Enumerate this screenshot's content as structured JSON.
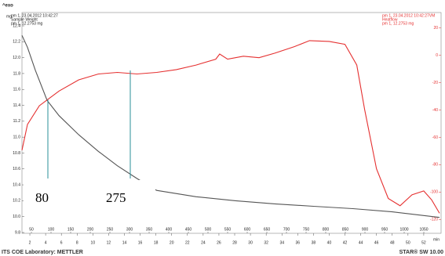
{
  "header": {
    "exo": "^exo"
  },
  "chart_data": {
    "type": "line",
    "left_header": [
      "pm 1, 23.04.2012 10:42:27",
      "Sample Weight",
      "pm 1, 12.2753 mg"
    ],
    "right_header": [
      "pm 1, 23.04.2012 10:42:27VM",
      "Heatflow",
      "pm 1, 12.2753 mg"
    ],
    "ylabel": "mg",
    "xlabel": "min",
    "xlim": [
      1.0,
      54.2
    ],
    "xticks": [
      2,
      4,
      6,
      8,
      10,
      12,
      14,
      16,
      18,
      20,
      22,
      24,
      26,
      28,
      30,
      32,
      34,
      36,
      38,
      40,
      42,
      44,
      46,
      48,
      50,
      52
    ],
    "x2lim": [
      26,
      1094
    ],
    "x2ticks": [
      50,
      100,
      150,
      200,
      250,
      300,
      350,
      400,
      450,
      500,
      550,
      600,
      650,
      700,
      750,
      800,
      850,
      900,
      950,
      1000,
      1050
    ],
    "ylim": [
      9.8,
      12.4
    ],
    "yticks": [
      {
        "value": 9.8,
        "label": "9.8"
      },
      {
        "value": 10.0,
        "label": "10.0"
      },
      {
        "value": 10.2,
        "label": "10.2"
      },
      {
        "value": 10.4,
        "label": "10.4"
      },
      {
        "value": 10.6,
        "label": "10.6"
      },
      {
        "value": 10.8,
        "label": "10.8"
      },
      {
        "value": 11.0,
        "label": "11.0"
      },
      {
        "value": 11.2,
        "label": "11.2"
      },
      {
        "value": 11.4,
        "label": "11.4"
      },
      {
        "value": 11.6,
        "label": "11.6"
      },
      {
        "value": 11.8,
        "label": "11.8"
      },
      {
        "value": 12.0,
        "label": "12.0"
      },
      {
        "value": 12.2,
        "label": "12.2"
      },
      {
        "value": 12.4,
        "label": "12.4"
      }
    ],
    "y2lim": [
      -129.6,
      21.6
    ],
    "y2ticks": [
      20,
      0,
      -20,
      -40,
      -60,
      -80,
      -100,
      -120
    ],
    "series": [
      {
        "name": "Sample Weight",
        "color": "#555555",
        "x": [
          1.0,
          1.7,
          2.7,
          4.2,
          5.7,
          8.2,
          10.7,
          13.1,
          15.6,
          18.1,
          23.1,
          28.1,
          33.1,
          38.0,
          43.0,
          48.0,
          54.0
        ],
        "values": [
          12.28,
          12.13,
          11.84,
          11.46,
          11.27,
          11.03,
          10.82,
          10.64,
          10.48,
          10.33,
          10.25,
          10.2,
          10.16,
          10.13,
          10.1,
          10.06,
          9.99
        ]
      },
      {
        "name": "Heatflow",
        "color": "#e53030",
        "axis": "y2",
        "x": [
          1.0,
          1.7,
          3.2,
          5.7,
          8.2,
          10.7,
          13.1,
          15.6,
          18.1,
          20.6,
          23.1,
          25.6,
          26.1,
          27.1,
          29.1,
          31.1,
          33.1,
          35.6,
          37.5,
          40.0,
          42.0,
          43.5,
          44.5,
          46.0,
          47.5,
          49.0,
          50.5,
          52.0,
          53.0,
          54.0
        ],
        "values": [
          -69.4,
          -50.5,
          -36.9,
          -26.1,
          -17.9,
          -13.6,
          -12.5,
          -13.6,
          -12.5,
          -10.4,
          -7.1,
          -2.8,
          1.0,
          -2.8,
          -0.6,
          -1.7,
          1.6,
          6.4,
          10.8,
          10.2,
          8.1,
          -7.1,
          -39.6,
          -83,
          -104.7,
          -110,
          -102,
          -99.2,
          -105.7,
          -115.5
        ]
      }
    ],
    "annotations": [
      "80",
      "275"
    ]
  },
  "footer": {
    "left": "ITS COE Laboratory: METTLER",
    "right": "STAR® SW 10.00"
  }
}
